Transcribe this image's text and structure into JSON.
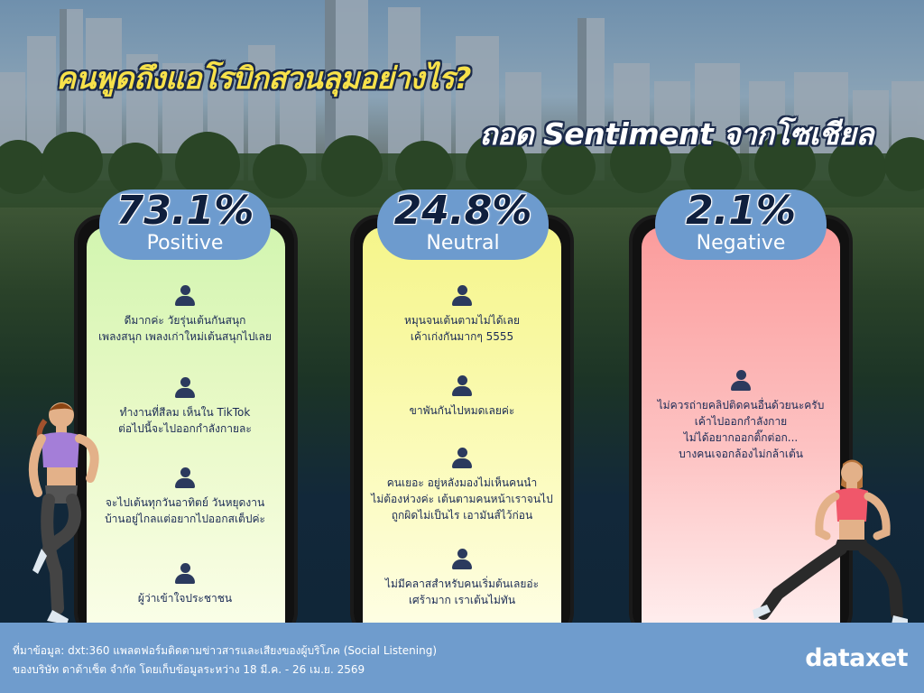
{
  "title": {
    "line1": "คนพูดถึงแอโรบิกสวนลุมอย่างไร?",
    "line2": "ถอด Sentiment จากโซเชียล"
  },
  "colors": {
    "title_yellow": "#f7e14a",
    "badge_blue": "#6d9bce",
    "positive_green": "#d2f5b0",
    "neutral_yellow": "#f5f58a",
    "negative_red": "#fb9c9c",
    "footer_blue": "#6f9ccd"
  },
  "sentiments": [
    {
      "percent": "73.1%",
      "label": "Positive",
      "comments": [
        [
          "ดีมากค่ะ วัยรุ่นเต้นกันสนุก",
          "เพลงสนุก เพลงเก่าใหม่เต้นสนุกไปเลย"
        ],
        [
          "ทำงานที่สีลม เห็นใน TikTok",
          "ต่อไปนี้จะไปออกกำลังกายละ"
        ],
        [
          "จะไปเต้นทุกวันอาทิตย์ วันหยุดงาน",
          "บ้านอยู่ไกลแต่อยากไปออกสเต็ปค่ะ"
        ],
        [
          "ผู้ว่าเข้าใจประชาชน"
        ]
      ]
    },
    {
      "percent": "24.8%",
      "label": "Neutral",
      "comments": [
        [
          "หมุนจนเต้นตามไม่ได้เลย",
          "เค้าเก่งกันมากๆ 5555"
        ],
        [
          "ขาพันกันไปหมดเลยค่ะ"
        ],
        [
          "คนเยอะ อยู่หลังมองไม่เห็นคนนำ",
          "ไม่ต้องห่วงค่ะ เต้นตามคนหน้าเราจนไป",
          "ถูกผิดไม่เป็นไร เอามันส์ไว้ก่อน"
        ],
        [
          "ไม่มีคลาสสำหรับคนเริ่มต้นเลยอ่ะ",
          "เศร้ามาก เราเต้นไม่ทัน"
        ]
      ]
    },
    {
      "percent": "2.1%",
      "label": "Negative",
      "comments": [
        [
          "ไม่ควรถ่ายคลิปติดคนอื่นด้วยนะครับ",
          "เค้าไปออกกำลังกาย",
          "ไม่ได้อยากออกติ๊กต่อก...",
          "บางคนเจอกล้องไม่กล้าเต้น"
        ]
      ]
    }
  ],
  "footer": {
    "source_line1": "ที่มาข้อมูล: dxt:360 แพลตฟอร์มติดตามข่าวสารและเสียงของผู้บริโภค (Social Listening)",
    "source_line2": "ของบริษัท ดาต้าเซ็ต จำกัด โดยเก็บข้อมูลระหว่าง 18 มี.ค. - 26 เม.ย. 2569",
    "logo": "dataxet"
  },
  "icons": {
    "comment_avatar": "user-icon"
  }
}
